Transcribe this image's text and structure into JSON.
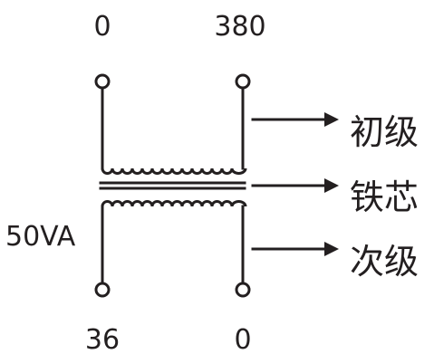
{
  "terminals": {
    "primary_left": "0",
    "primary_right": "380",
    "secondary_left": "36",
    "secondary_right": "0"
  },
  "rating": "50VA",
  "callouts": {
    "primary": "初级",
    "core": "铁芯",
    "secondary": "次级"
  },
  "colors": {
    "line": "#231f20",
    "background": "#ffffff"
  }
}
